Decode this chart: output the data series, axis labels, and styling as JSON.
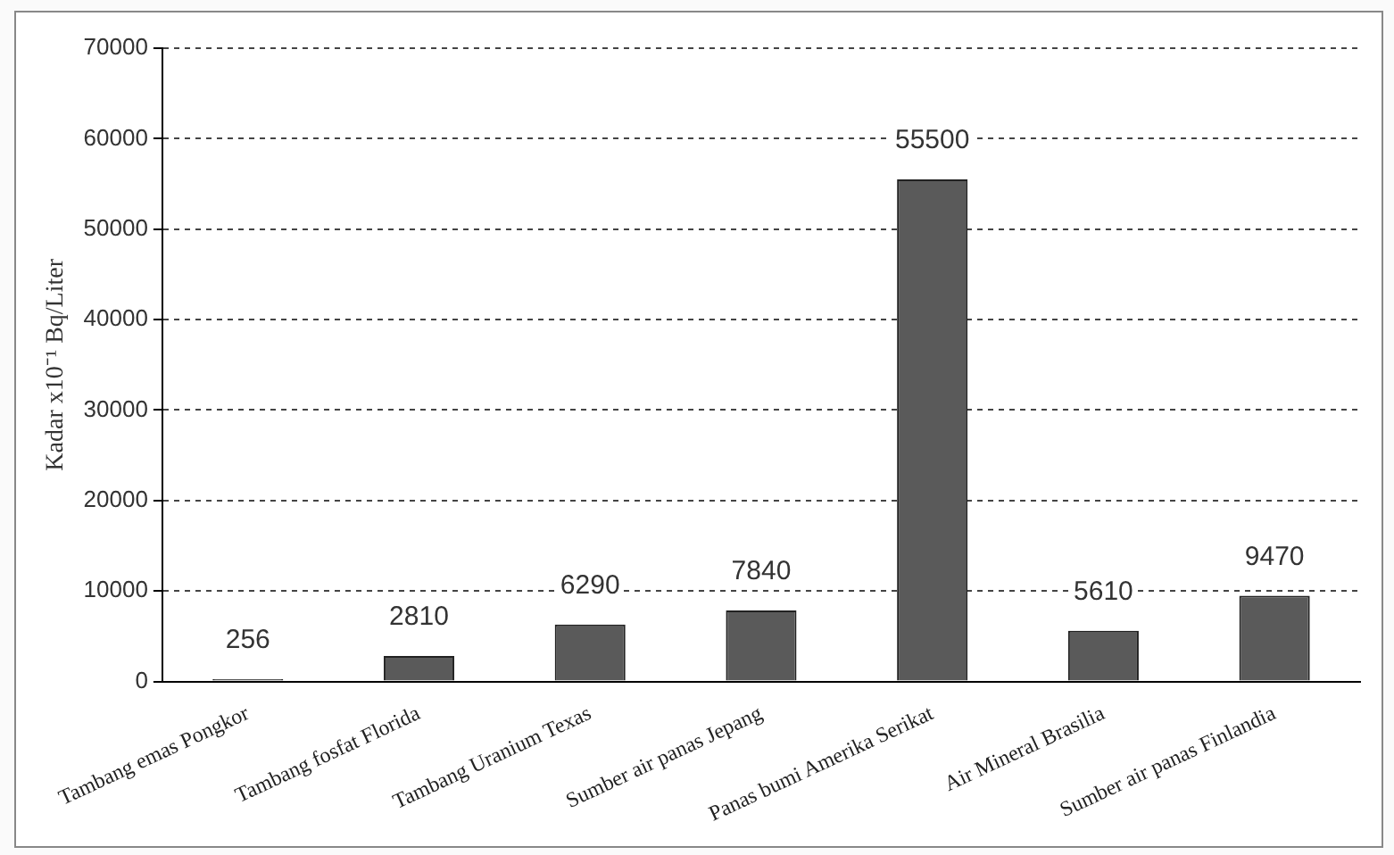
{
  "chart_data": {
    "type": "bar",
    "ylabel": "Kadar x10⁻¹ Bq/Liter",
    "categories": [
      "Tambang emas Pongkor",
      "Tambang fosfat Florida",
      "Tambang Uranium Texas",
      "Sumber air panas Jepang",
      "Panas bumi Amerika Serikat",
      "Air Mineral Brasilia",
      "Sumber air panas Finlandia"
    ],
    "values": [
      256,
      2810,
      6290,
      7840,
      55500,
      5610,
      9470
    ],
    "color": "#5a5a5a",
    "ylim": [
      0,
      70000
    ],
    "yticks": [
      0,
      10000,
      20000,
      30000,
      40000,
      50000,
      60000,
      70000
    ],
    "grid": "y",
    "legend": false,
    "data_labels": true
  }
}
